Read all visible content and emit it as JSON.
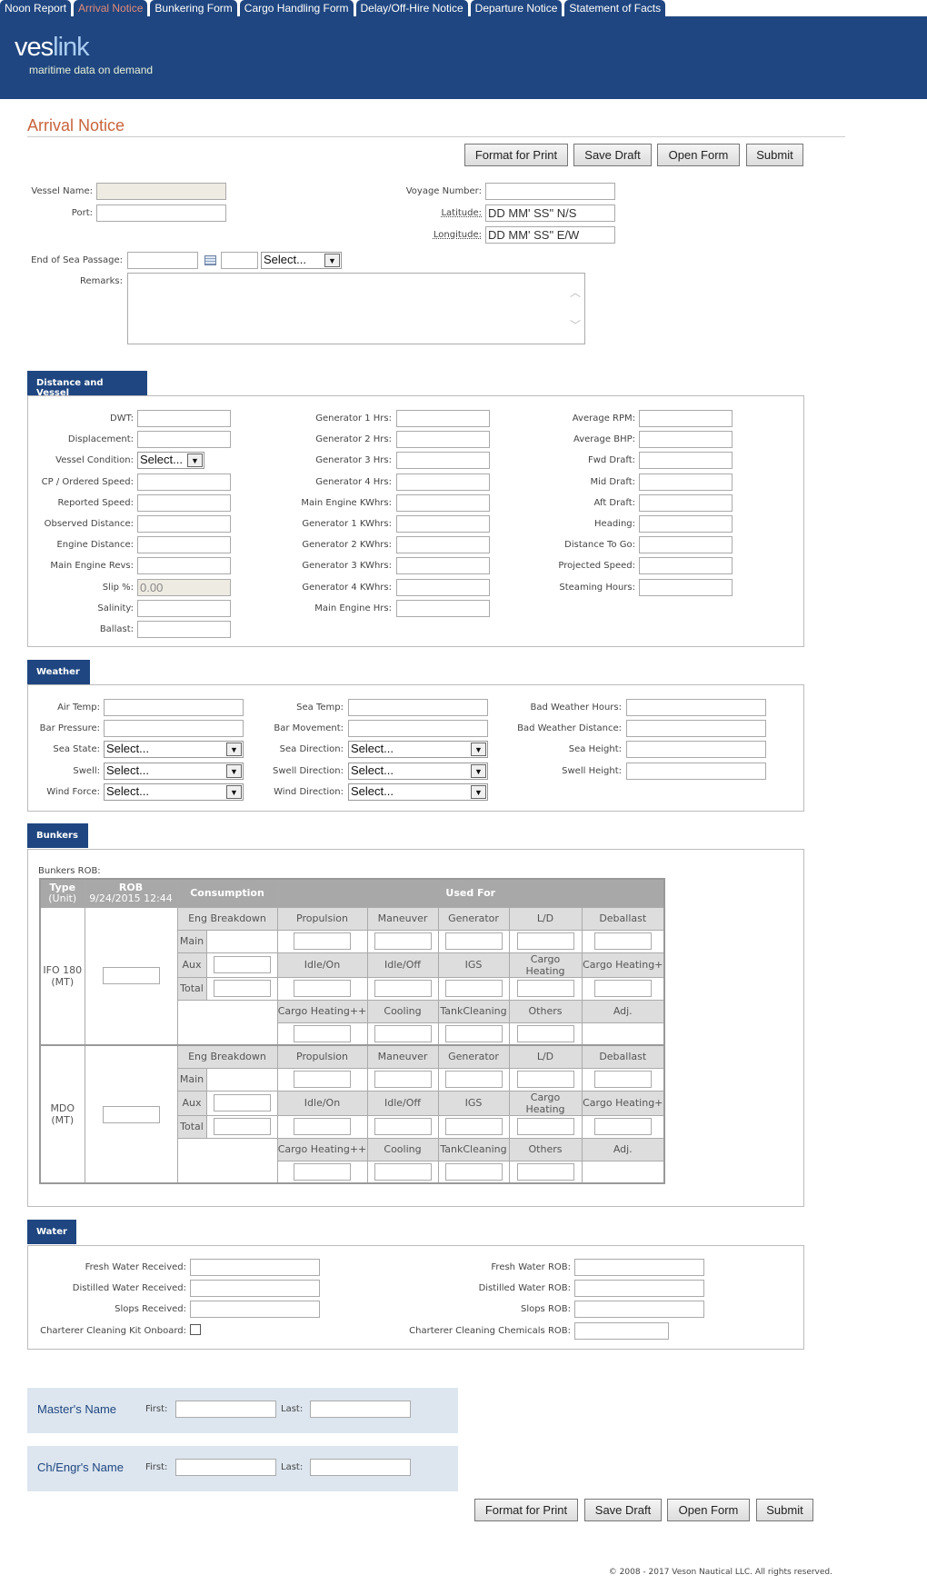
{
  "tabs": [
    "Noon Report",
    "Arrival Notice",
    "Bunkering Form",
    "Cargo Handling Form",
    "Delay/Off-Hire Notice",
    "Departure Notice",
    "Statement of Facts"
  ],
  "active_tab": "Arrival Notice",
  "logo": {
    "part1": "ves",
    "part2": "link",
    "tagline": "maritime data on demand"
  },
  "colors": {
    "brand": "#1f4680",
    "title": "#c8643c",
    "active_tab": "#e08a7a"
  },
  "page_title": "Arrival Notice",
  "buttons": {
    "format_for_print": "Format for Print",
    "save_draft": "Save Draft",
    "open_form": "Open Form",
    "submit": "Submit"
  },
  "top": {
    "vessel_name": "Vessel Name:",
    "port": "Port:",
    "voyage_number": "Voyage Number:",
    "latitude": "Latitude:",
    "latitude_placeholder": "DD MM' SS\" N/S",
    "longitude": "Longitude:",
    "longitude_placeholder": "DD MM' SS\" E/W",
    "end_of_sea_passage": "End of Sea Passage:",
    "select_default": "Select...",
    "remarks": "Remarks:"
  },
  "distance_vessel": {
    "title": "Distance and Vessel",
    "col1": [
      {
        "l": "DWT:"
      },
      {
        "l": "Displacement:"
      },
      {
        "l": "Vessel Condition:",
        "select": "Select..."
      },
      {
        "l": "CP / Ordered Speed:"
      },
      {
        "l": "Reported Speed:"
      },
      {
        "l": "Observed Distance:"
      },
      {
        "l": "Engine Distance:"
      },
      {
        "l": "Main Engine Revs:"
      },
      {
        "l": "Slip %:",
        "value": "0.00",
        "readonly": true
      },
      {
        "l": "Salinity:"
      },
      {
        "l": "Ballast:"
      }
    ],
    "col2": [
      {
        "l": "Generator 1 Hrs:"
      },
      {
        "l": "Generator 2 Hrs:"
      },
      {
        "l": "Generator 3 Hrs:"
      },
      {
        "l": "Generator 4 Hrs:"
      },
      {
        "l": "Main Engine KWhrs:"
      },
      {
        "l": "Generator 1 KWhrs:"
      },
      {
        "l": "Generator 2 KWhrs:"
      },
      {
        "l": "Generator 3 KWhrs:"
      },
      {
        "l": "Generator 4 KWhrs:"
      },
      {
        "l": "Main Engine Hrs:"
      }
    ],
    "col3": [
      {
        "l": "Average RPM:"
      },
      {
        "l": "Average BHP:"
      },
      {
        "l": "Fwd Draft:"
      },
      {
        "l": "Mid Draft:"
      },
      {
        "l": "Aft Draft:"
      },
      {
        "l": "Heading:"
      },
      {
        "l": "Distance To Go:"
      },
      {
        "l": "Projected Speed:"
      },
      {
        "l": "Steaming Hours:"
      }
    ]
  },
  "weather": {
    "title": "Weather",
    "col1": [
      {
        "l": "Air Temp:"
      },
      {
        "l": "Bar Pressure:"
      },
      {
        "l": "Sea State:",
        "select": "Select..."
      },
      {
        "l": "Swell:",
        "select": "Select..."
      },
      {
        "l": "Wind Force:",
        "select": "Select..."
      }
    ],
    "col2": [
      {
        "l": "Sea Temp:"
      },
      {
        "l": "Bar Movement:"
      },
      {
        "l": "Sea Direction:",
        "select": "Select..."
      },
      {
        "l": "Swell Direction:",
        "select": "Select..."
      },
      {
        "l": "Wind Direction:",
        "select": "Select..."
      }
    ],
    "col3": [
      {
        "l": "Bad Weather Hours:"
      },
      {
        "l": "Bad Weather Distance:"
      },
      {
        "l": "Sea Height:"
      },
      {
        "l": "Swell Height:"
      }
    ]
  },
  "bunkers": {
    "title": "Bunkers",
    "rob_label": "Bunkers ROB:",
    "headers": {
      "type": "Type",
      "unit": "(Unit)",
      "rob": "ROB",
      "rob_date": "9/24/2015 12:44",
      "consumption": "Consumption",
      "used_for": "Used For"
    },
    "eng_breakdown": "Eng Breakdown",
    "eng_rows": [
      "Main",
      "Aux",
      "Total"
    ],
    "used_row1": [
      "Propulsion",
      "Maneuver",
      "Generator",
      "L/D",
      "Deballast"
    ],
    "used_row2": [
      "Idle/On",
      "Idle/Off",
      "IGS",
      "Cargo Heating",
      "Cargo Heating+"
    ],
    "used_row3": [
      "Cargo Heating++",
      "Cooling",
      "TankCleaning",
      "Others",
      "Adj."
    ],
    "fuels": [
      {
        "name": "IFO 180",
        "unit": "(MT)"
      },
      {
        "name": "MDO",
        "unit": "(MT)"
      }
    ]
  },
  "water": {
    "title": "Water",
    "col1": [
      "Fresh Water Received:",
      "Distilled Water Received:",
      "Slops Received:",
      "Charterer Cleaning Kit Onboard:"
    ],
    "col2": [
      "Fresh Water ROB:",
      "Distilled Water ROB:",
      "Slops ROB:",
      "Charterer Cleaning Chemicals ROB:"
    ]
  },
  "masters_name": {
    "label": "Master's Name",
    "first": "First:",
    "last": "Last:"
  },
  "engineers_name": {
    "label": "Ch/Engr's Name",
    "first": "First:",
    "last": "Last:"
  },
  "footer": "© 2008 - 2017 Veson Nautical LLC. All rights reserved."
}
